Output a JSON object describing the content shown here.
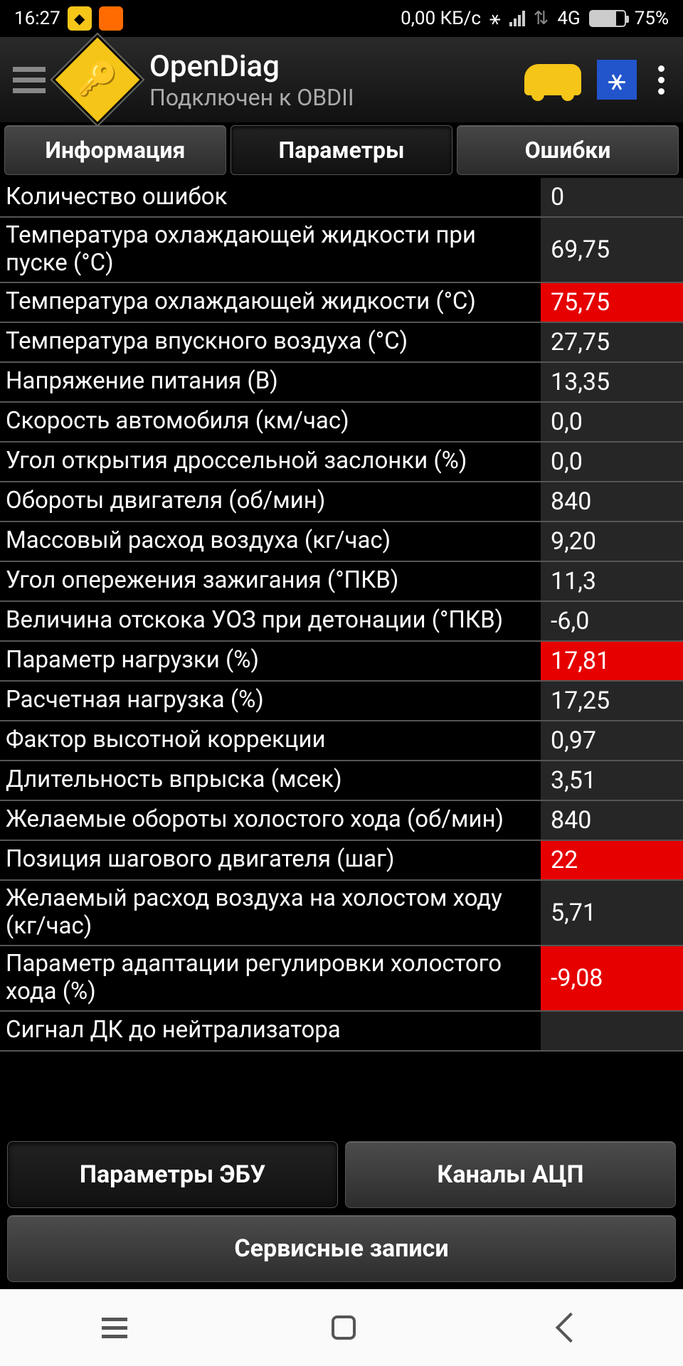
{
  "status": {
    "time": "16:27",
    "data_rate": "0,00 КБ/с",
    "network": "4G",
    "battery_pct": "75%"
  },
  "header": {
    "title": "OpenDiag",
    "subtitle": "Подключен к OBDII"
  },
  "tabs": {
    "info": "Информация",
    "params": "Параметры",
    "errors": "Ошибки"
  },
  "parameters": [
    {
      "label": "Количество ошибок",
      "value": "0",
      "alert": false
    },
    {
      "label": "Температура охлаждающей жидкости при пуске (°C)",
      "value": "69,75",
      "alert": false
    },
    {
      "label": "Температура охлаждающей жидкости (°C)",
      "value": "75,75",
      "alert": true
    },
    {
      "label": "Температура впускного воздуха (°C)",
      "value": "27,75",
      "alert": false
    },
    {
      "label": "Напряжение питания (В)",
      "value": "13,35",
      "alert": false
    },
    {
      "label": "Скорость автомобиля (км/час)",
      "value": "0,0",
      "alert": false
    },
    {
      "label": "Угол открытия дроссельной заслонки (%)",
      "value": "0,0",
      "alert": false
    },
    {
      "label": "Обороты двигателя (об/мин)",
      "value": "840",
      "alert": false
    },
    {
      "label": "Массовый расход воздуха (кг/час)",
      "value": "9,20",
      "alert": false
    },
    {
      "label": "Угол опережения зажигания (°ПКВ)",
      "value": "11,3",
      "alert": false
    },
    {
      "label": "Величина отскока УОЗ при детонации (°ПКВ)",
      "value": "-6,0",
      "alert": false
    },
    {
      "label": "Параметр нагрузки (%)",
      "value": "17,81",
      "alert": true
    },
    {
      "label": "Расчетная нагрузка (%)",
      "value": "17,25",
      "alert": false
    },
    {
      "label": "Фактор высотной коррекции",
      "value": "0,97",
      "alert": false
    },
    {
      "label": "Длительность впрыска (мсек)",
      "value": "3,51",
      "alert": false
    },
    {
      "label": "Желаемые обороты холостого хода (об/мин)",
      "value": "840",
      "alert": false
    },
    {
      "label": "Позиция шагового двигателя (шаг)",
      "value": "22",
      "alert": true
    },
    {
      "label": "Желаемый расход воздуха на холостом ходу (кг/час)",
      "value": "5,71",
      "alert": false
    },
    {
      "label": "Параметр адаптации регулировки холостого хода (%)",
      "value": "-9,08",
      "alert": true
    },
    {
      "label": "Сигнал ДК до нейтрализатора",
      "value": "",
      "alert": false,
      "cut": true
    }
  ],
  "bottom": {
    "ecu_params": "Параметры ЭБУ",
    "adc_channels": "Каналы АЦП",
    "service_records": "Сервисные записи"
  },
  "colors": {
    "alert_bg": "#e60000",
    "value_bg": "#262626",
    "accent_yellow": "#f5c518"
  }
}
